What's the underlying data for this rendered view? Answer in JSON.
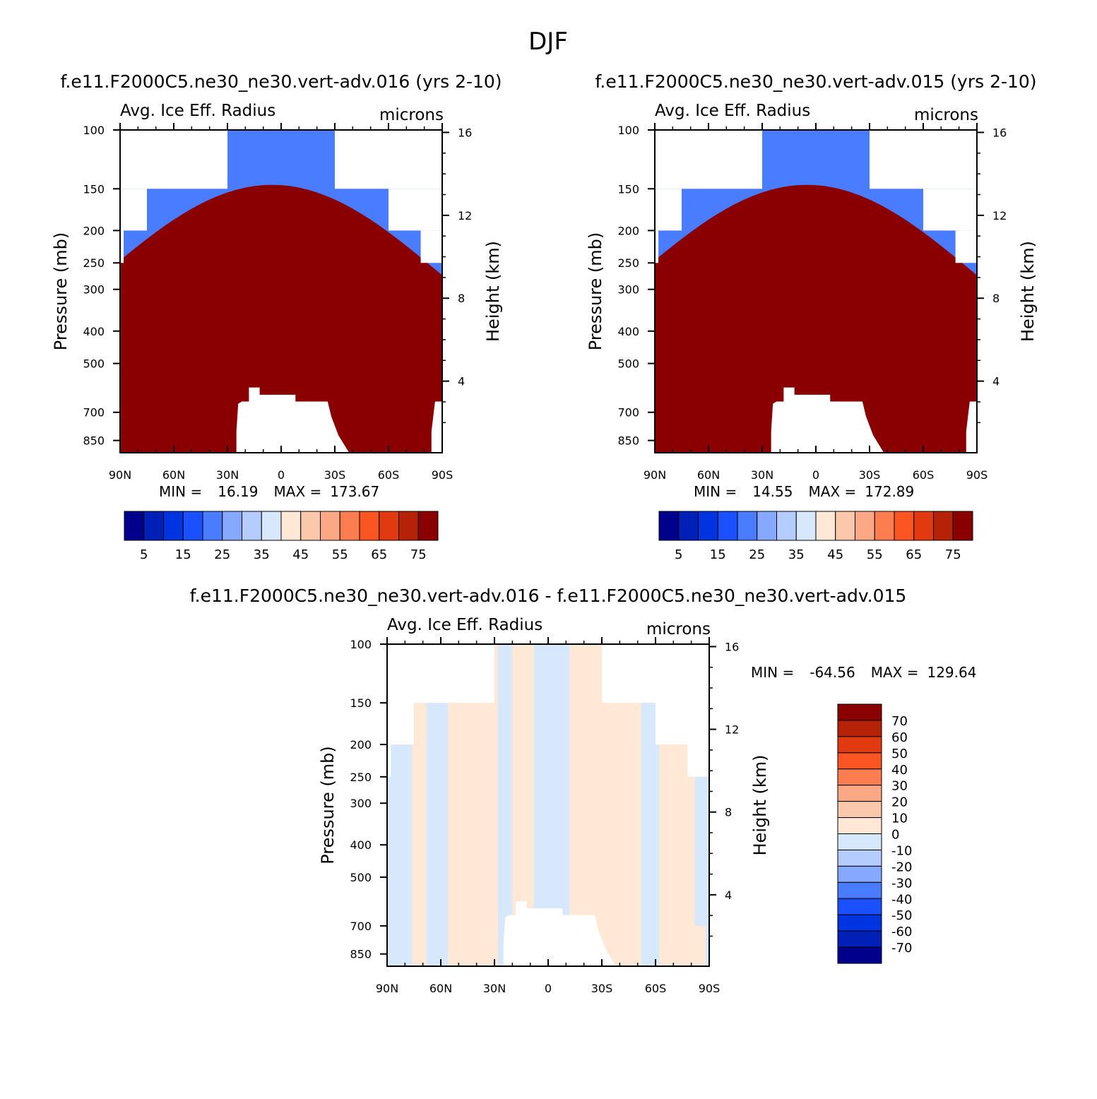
{
  "figure": {
    "title": "DJF",
    "colors": {
      "seq": [
        "#00008c",
        "#0020b8",
        "#0034e0",
        "#1a50ff",
        "#4a7cff",
        "#86a8ff",
        "#b4ccff",
        "#d8e8fc",
        "#ffe8d6",
        "#fcc8ac",
        "#fca884",
        "#fc7e50",
        "#fc5524",
        "#e23a10",
        "#b52208",
        "#8a0000"
      ],
      "white": "#ffffff"
    }
  },
  "chart_data": [
    {
      "id": "panel1",
      "type": "heatmap",
      "title": "f.e11.F2000C5.ne30_ne30.vert-adv.016 (yrs 2-10)",
      "left_label": "Avg. Ice Eff. Radius",
      "right_label": "microns",
      "ylabel": "Pressure (mb)",
      "ylabel_right": "Height (km)",
      "x_ticks": [
        "90N",
        "60N",
        "30N",
        "0",
        "30S",
        "60S",
        "90S"
      ],
      "y_ticks": [
        "100",
        "150",
        "200",
        "250",
        "300",
        "400",
        "500",
        "700",
        "850"
      ],
      "y_ticks_right": [
        "16",
        "12",
        "8",
        "4"
      ],
      "stats": {
        "min_label": "MIN =",
        "min": "16.19",
        "max_label": "MAX =",
        "max": "173.67"
      },
      "colorbar": {
        "orientation": "horizontal",
        "labels": [
          "5",
          "15",
          "25",
          "35",
          "45",
          "55",
          "65",
          "75"
        ]
      }
    },
    {
      "id": "panel2",
      "type": "heatmap",
      "title": "f.e11.F2000C5.ne30_ne30.vert-adv.015 (yrs 2-10)",
      "left_label": "Avg. Ice Eff. Radius",
      "right_label": "microns",
      "ylabel": "Pressure (mb)",
      "ylabel_right": "Height (km)",
      "x_ticks": [
        "90N",
        "60N",
        "30N",
        "0",
        "30S",
        "60S",
        "90S"
      ],
      "y_ticks": [
        "100",
        "150",
        "200",
        "250",
        "300",
        "400",
        "500",
        "700",
        "850"
      ],
      "y_ticks_right": [
        "16",
        "12",
        "8",
        "4"
      ],
      "stats": {
        "min_label": "MIN =",
        "min": "14.55",
        "max_label": "MAX =",
        "max": "172.89"
      },
      "colorbar": {
        "orientation": "horizontal",
        "labels": [
          "5",
          "15",
          "25",
          "35",
          "45",
          "55",
          "65",
          "75"
        ]
      }
    },
    {
      "id": "panel3",
      "type": "heatmap",
      "title": "f.e11.F2000C5.ne30_ne30.vert-adv.016 - f.e11.F2000C5.ne30_ne30.vert-adv.015",
      "left_label": "Avg. Ice Eff. Radius",
      "right_label": "microns",
      "ylabel": "Pressure (mb)",
      "ylabel_right": "Height (km)",
      "x_ticks": [
        "90N",
        "60N",
        "30N",
        "0",
        "30S",
        "60S",
        "90S"
      ],
      "y_ticks": [
        "100",
        "150",
        "200",
        "250",
        "300",
        "400",
        "500",
        "700",
        "850"
      ],
      "y_ticks_right": [
        "16",
        "12",
        "8",
        "4"
      ],
      "stats": {
        "min_label": "MIN =",
        "min": "-64.56",
        "max_label": "MAX =",
        "max": "129.64"
      },
      "colorbar": {
        "orientation": "vertical",
        "labels": [
          "70",
          "60",
          "50",
          "40",
          "30",
          "20",
          "10",
          "0",
          "-10",
          "-20",
          "-30",
          "-40",
          "-50",
          "-60",
          "-70"
        ]
      }
    }
  ]
}
